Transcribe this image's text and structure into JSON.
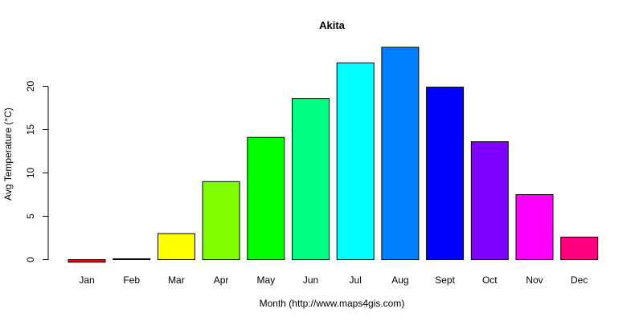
{
  "chart_data": {
    "type": "bar",
    "title": "Akita",
    "xlabel": "Month (http://www.maps4gis.com)",
    "ylabel": "Avg Temperature (°C)",
    "categories": [
      "Jan",
      "Feb",
      "Mar",
      "Apr",
      "May",
      "Jun",
      "Jul",
      "Aug",
      "Sept",
      "Oct",
      "Nov",
      "Dec"
    ],
    "values": [
      -0.3,
      0.1,
      3.0,
      9.0,
      14.1,
      18.6,
      22.7,
      24.5,
      19.9,
      13.6,
      7.5,
      2.6
    ],
    "colors": [
      "#FF0000",
      "#FF8000",
      "#FFFF00",
      "#80FF00",
      "#00FF00",
      "#00FF80",
      "#00FFFF",
      "#0080FF",
      "#0000FF",
      "#8000FF",
      "#FF00FF",
      "#FF0080"
    ],
    "yticks": [
      0,
      5,
      10,
      15,
      20
    ],
    "ylim": [
      -0.3,
      24.5
    ],
    "grid": false,
    "legend": "none"
  }
}
